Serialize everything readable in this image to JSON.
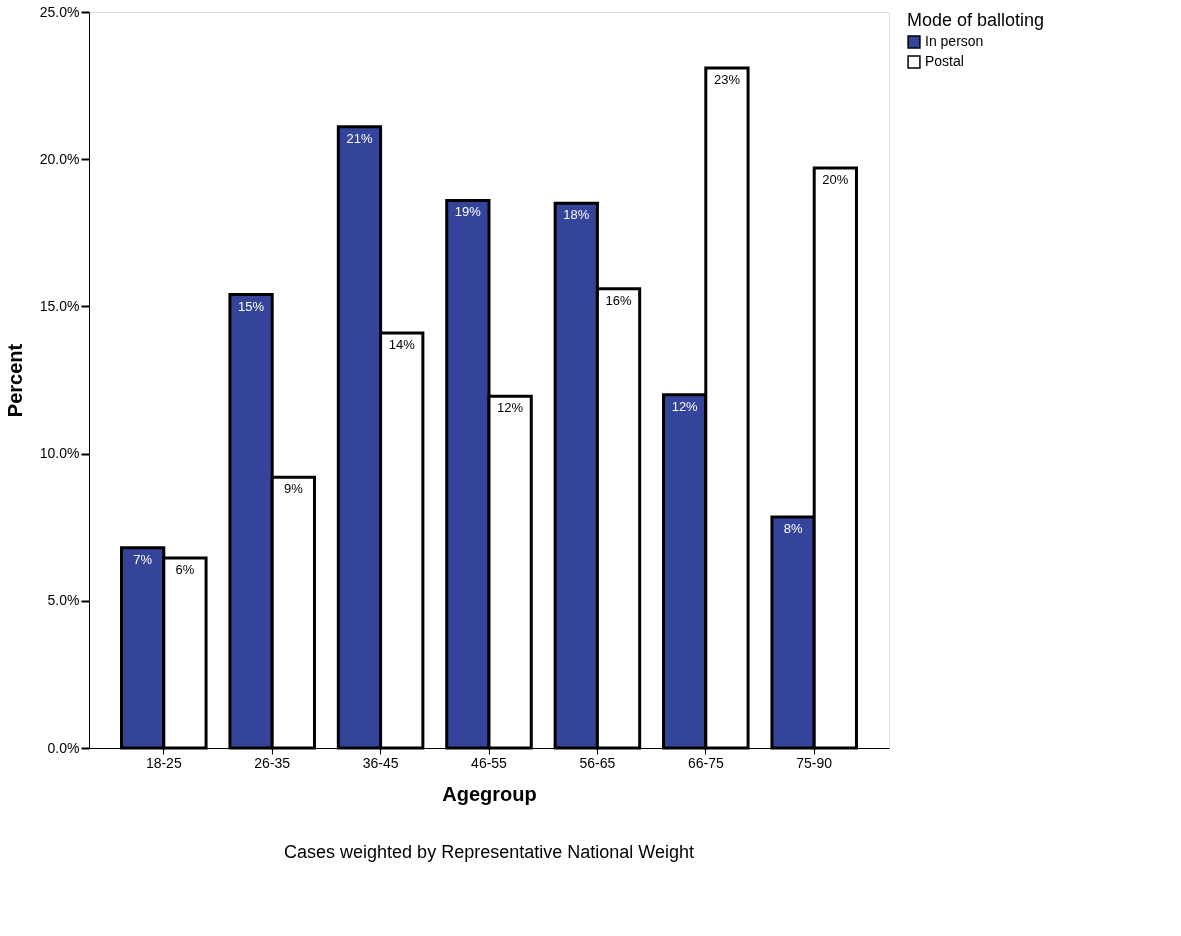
{
  "chart_data": {
    "type": "bar",
    "xlabel": "Agegroup",
    "ylabel": "Percent",
    "legend_title": "Mode of balloting",
    "categories": [
      "18-25",
      "26-35",
      "36-45",
      "46-55",
      "56-65",
      "66-75",
      "75-90"
    ],
    "series": [
      {
        "name": "In person",
        "color": "#34449a",
        "values": [
          6.8,
          15.4,
          21.1,
          18.6,
          18.5,
          12.0,
          7.85
        ],
        "value_labels": [
          "7%",
          "15%",
          "21%",
          "19%",
          "18%",
          "12%",
          "8%"
        ]
      },
      {
        "name": "Postal",
        "color": "#ffffff",
        "values": [
          6.45,
          9.2,
          14.1,
          11.95,
          15.6,
          23.1,
          19.7
        ],
        "value_labels": [
          "6%",
          "9%",
          "14%",
          "12%",
          "16%",
          "23%",
          "20%"
        ]
      }
    ],
    "ylim": [
      0,
      25
    ],
    "yticks": [
      {
        "value": 0,
        "label": "0.0%"
      },
      {
        "value": 5,
        "label": "5.0%"
      },
      {
        "value": 10,
        "label": "10.0%"
      },
      {
        "value": 15,
        "label": "15.0%"
      },
      {
        "value": 20,
        "label": "20.0%"
      },
      {
        "value": 25,
        "label": "25.0%"
      }
    ],
    "grid": false,
    "legend": "top right",
    "annotations": [
      "Cases weighted by Representative National Weight"
    ]
  }
}
